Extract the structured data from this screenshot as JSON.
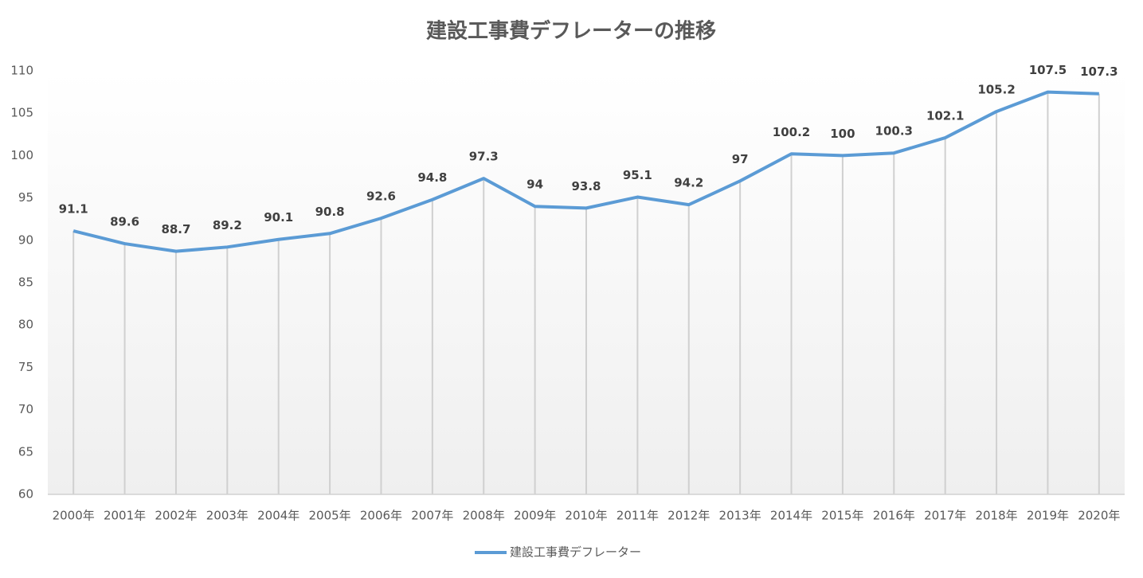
{
  "chart_data": {
    "type": "line",
    "title": "建設工事費デフレーターの推移",
    "categories": [
      "2000年",
      "2001年",
      "2002年",
      "2003年",
      "2004年",
      "2005年",
      "2006年",
      "2007年",
      "2008年",
      "2009年",
      "2010年",
      "2011年",
      "2012年",
      "2013年",
      "2014年",
      "2015年",
      "2016年",
      "2017年",
      "2018年",
      "2019年",
      "2020年"
    ],
    "series": [
      {
        "name": "建設工事費デフレーター",
        "color": "#5b9bd5",
        "values": [
          91.1,
          89.6,
          88.7,
          89.2,
          90.1,
          90.8,
          92.6,
          94.8,
          97.3,
          94,
          93.8,
          95.1,
          94.2,
          97,
          100.2,
          100,
          100.3,
          102.1,
          105.2,
          107.5,
          107.3
        ]
      }
    ],
    "ylim": [
      60,
      110
    ],
    "yticks": [
      60,
      65,
      70,
      75,
      80,
      85,
      90,
      95,
      100,
      105,
      110
    ],
    "grid": false,
    "legend": "bottom"
  }
}
